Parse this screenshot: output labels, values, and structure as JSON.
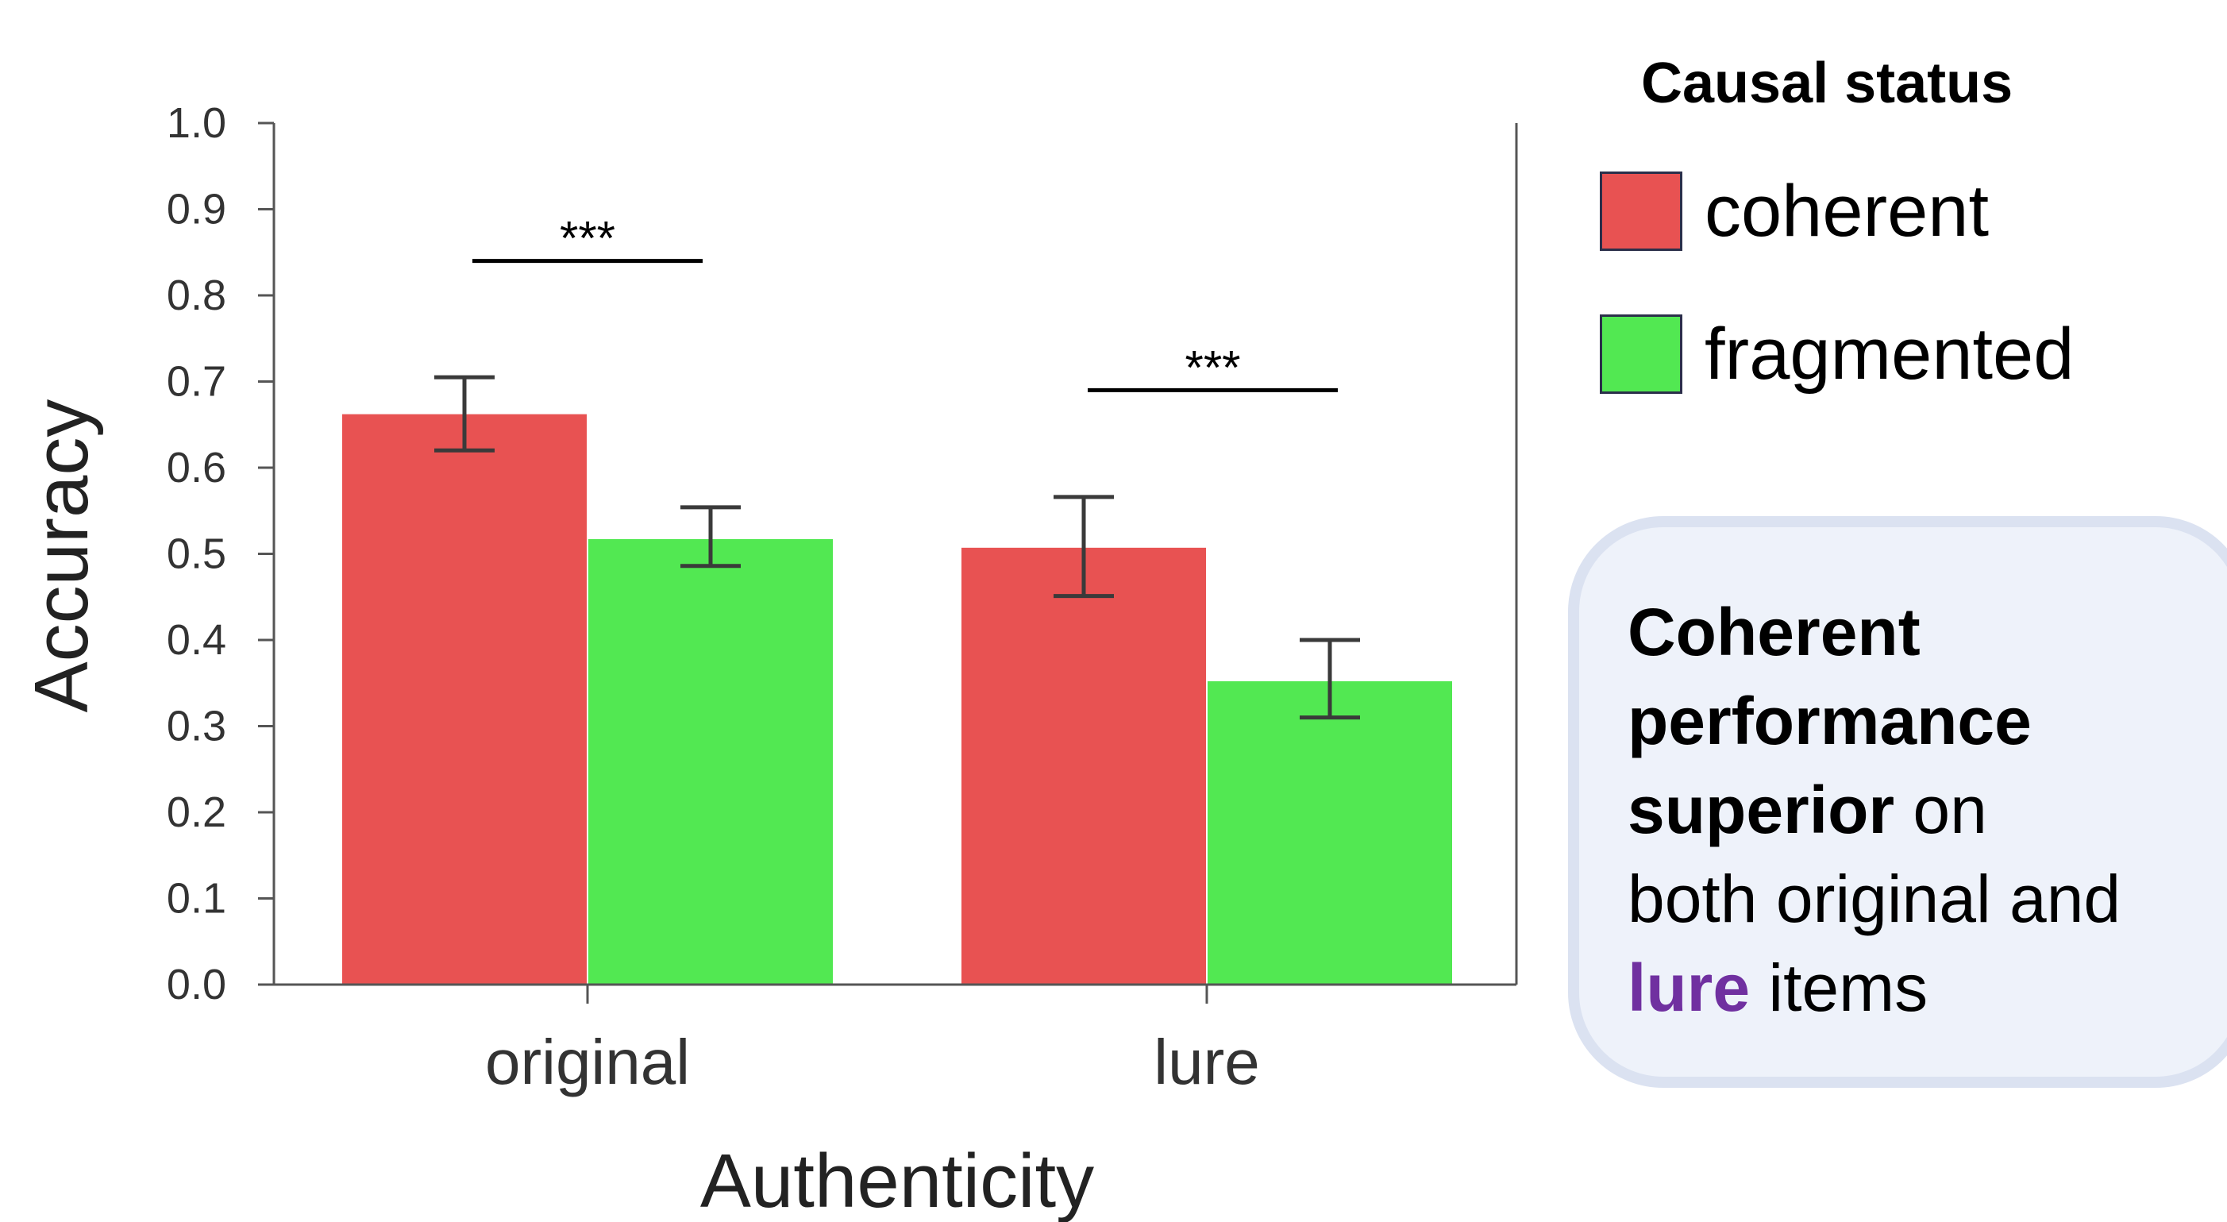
{
  "chart_data": {
    "type": "bar",
    "categories": [
      "original",
      "lure"
    ],
    "series": [
      {
        "name": "coherent",
        "color": "#e85252",
        "values": [
          0.663,
          0.508
        ],
        "err_low": [
          0.62,
          0.451
        ],
        "err_high": [
          0.705,
          0.566
        ]
      },
      {
        "name": "fragmented",
        "color": "#52e852",
        "values": [
          0.518,
          0.353
        ],
        "err_low": [
          0.486,
          0.31
        ],
        "err_high": [
          0.554,
          0.4
        ]
      }
    ],
    "ylim": [
      0,
      1
    ],
    "yticks": [
      "0.0",
      "0.1",
      "0.2",
      "0.3",
      "0.4",
      "0.5",
      "0.6",
      "0.7",
      "0.8",
      "0.9",
      "1.0"
    ],
    "xlabel": "Authenticity",
    "ylabel": "Accuracy",
    "significance": [
      {
        "category": "original",
        "label": "***",
        "y": 0.84
      },
      {
        "category": "lure",
        "label": "***",
        "y": 0.69
      }
    ]
  },
  "legend": {
    "title": "Causal status",
    "items": [
      {
        "label": "coherent",
        "color": "#e85252"
      },
      {
        "label": "fragmented",
        "color": "#52e852"
      }
    ]
  },
  "callout": {
    "line1_bold": "Coherent",
    "line2_bold": "performance",
    "line3_bold": "superior",
    "line3_rest": " on",
    "line4": "both original and",
    "line5_highlight": "lure",
    "line5_rest": " items"
  }
}
